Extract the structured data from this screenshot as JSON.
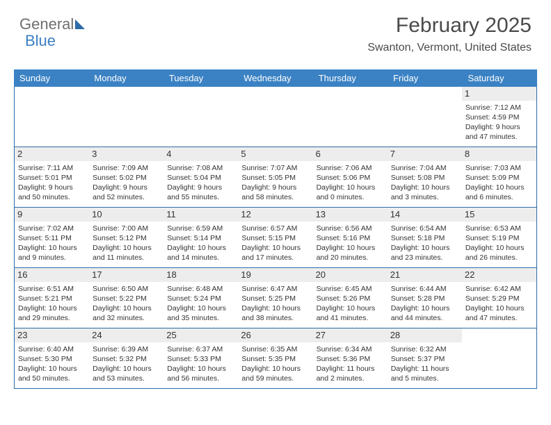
{
  "logo": {
    "text1": "General",
    "text2": "Blue"
  },
  "header": {
    "title": "February 2025",
    "location": "Swanton, Vermont, United States"
  },
  "colors": {
    "header_bg": "#3b82c4",
    "header_text": "#ffffff",
    "border": "#2c6aa8",
    "daynum_bg": "#ededed",
    "body_text": "#333333",
    "logo_gray": "#6f6f6f",
    "logo_blue": "#3b7fc4"
  },
  "day_names": [
    "Sunday",
    "Monday",
    "Tuesday",
    "Wednesday",
    "Thursday",
    "Friday",
    "Saturday"
  ],
  "weeks": [
    [
      {
        "day": "",
        "sunrise": "",
        "sunset": "",
        "daylight1": "",
        "daylight2": ""
      },
      {
        "day": "",
        "sunrise": "",
        "sunset": "",
        "daylight1": "",
        "daylight2": ""
      },
      {
        "day": "",
        "sunrise": "",
        "sunset": "",
        "daylight1": "",
        "daylight2": ""
      },
      {
        "day": "",
        "sunrise": "",
        "sunset": "",
        "daylight1": "",
        "daylight2": ""
      },
      {
        "day": "",
        "sunrise": "",
        "sunset": "",
        "daylight1": "",
        "daylight2": ""
      },
      {
        "day": "",
        "sunrise": "",
        "sunset": "",
        "daylight1": "",
        "daylight2": ""
      },
      {
        "day": "1",
        "sunrise": "Sunrise: 7:12 AM",
        "sunset": "Sunset: 4:59 PM",
        "daylight1": "Daylight: 9 hours",
        "daylight2": "and 47 minutes."
      }
    ],
    [
      {
        "day": "2",
        "sunrise": "Sunrise: 7:11 AM",
        "sunset": "Sunset: 5:01 PM",
        "daylight1": "Daylight: 9 hours",
        "daylight2": "and 50 minutes."
      },
      {
        "day": "3",
        "sunrise": "Sunrise: 7:09 AM",
        "sunset": "Sunset: 5:02 PM",
        "daylight1": "Daylight: 9 hours",
        "daylight2": "and 52 minutes."
      },
      {
        "day": "4",
        "sunrise": "Sunrise: 7:08 AM",
        "sunset": "Sunset: 5:04 PM",
        "daylight1": "Daylight: 9 hours",
        "daylight2": "and 55 minutes."
      },
      {
        "day": "5",
        "sunrise": "Sunrise: 7:07 AM",
        "sunset": "Sunset: 5:05 PM",
        "daylight1": "Daylight: 9 hours",
        "daylight2": "and 58 minutes."
      },
      {
        "day": "6",
        "sunrise": "Sunrise: 7:06 AM",
        "sunset": "Sunset: 5:06 PM",
        "daylight1": "Daylight: 10 hours",
        "daylight2": "and 0 minutes."
      },
      {
        "day": "7",
        "sunrise": "Sunrise: 7:04 AM",
        "sunset": "Sunset: 5:08 PM",
        "daylight1": "Daylight: 10 hours",
        "daylight2": "and 3 minutes."
      },
      {
        "day": "8",
        "sunrise": "Sunrise: 7:03 AM",
        "sunset": "Sunset: 5:09 PM",
        "daylight1": "Daylight: 10 hours",
        "daylight2": "and 6 minutes."
      }
    ],
    [
      {
        "day": "9",
        "sunrise": "Sunrise: 7:02 AM",
        "sunset": "Sunset: 5:11 PM",
        "daylight1": "Daylight: 10 hours",
        "daylight2": "and 9 minutes."
      },
      {
        "day": "10",
        "sunrise": "Sunrise: 7:00 AM",
        "sunset": "Sunset: 5:12 PM",
        "daylight1": "Daylight: 10 hours",
        "daylight2": "and 11 minutes."
      },
      {
        "day": "11",
        "sunrise": "Sunrise: 6:59 AM",
        "sunset": "Sunset: 5:14 PM",
        "daylight1": "Daylight: 10 hours",
        "daylight2": "and 14 minutes."
      },
      {
        "day": "12",
        "sunrise": "Sunrise: 6:57 AM",
        "sunset": "Sunset: 5:15 PM",
        "daylight1": "Daylight: 10 hours",
        "daylight2": "and 17 minutes."
      },
      {
        "day": "13",
        "sunrise": "Sunrise: 6:56 AM",
        "sunset": "Sunset: 5:16 PM",
        "daylight1": "Daylight: 10 hours",
        "daylight2": "and 20 minutes."
      },
      {
        "day": "14",
        "sunrise": "Sunrise: 6:54 AM",
        "sunset": "Sunset: 5:18 PM",
        "daylight1": "Daylight: 10 hours",
        "daylight2": "and 23 minutes."
      },
      {
        "day": "15",
        "sunrise": "Sunrise: 6:53 AM",
        "sunset": "Sunset: 5:19 PM",
        "daylight1": "Daylight: 10 hours",
        "daylight2": "and 26 minutes."
      }
    ],
    [
      {
        "day": "16",
        "sunrise": "Sunrise: 6:51 AM",
        "sunset": "Sunset: 5:21 PM",
        "daylight1": "Daylight: 10 hours",
        "daylight2": "and 29 minutes."
      },
      {
        "day": "17",
        "sunrise": "Sunrise: 6:50 AM",
        "sunset": "Sunset: 5:22 PM",
        "daylight1": "Daylight: 10 hours",
        "daylight2": "and 32 minutes."
      },
      {
        "day": "18",
        "sunrise": "Sunrise: 6:48 AM",
        "sunset": "Sunset: 5:24 PM",
        "daylight1": "Daylight: 10 hours",
        "daylight2": "and 35 minutes."
      },
      {
        "day": "19",
        "sunrise": "Sunrise: 6:47 AM",
        "sunset": "Sunset: 5:25 PM",
        "daylight1": "Daylight: 10 hours",
        "daylight2": "and 38 minutes."
      },
      {
        "day": "20",
        "sunrise": "Sunrise: 6:45 AM",
        "sunset": "Sunset: 5:26 PM",
        "daylight1": "Daylight: 10 hours",
        "daylight2": "and 41 minutes."
      },
      {
        "day": "21",
        "sunrise": "Sunrise: 6:44 AM",
        "sunset": "Sunset: 5:28 PM",
        "daylight1": "Daylight: 10 hours",
        "daylight2": "and 44 minutes."
      },
      {
        "day": "22",
        "sunrise": "Sunrise: 6:42 AM",
        "sunset": "Sunset: 5:29 PM",
        "daylight1": "Daylight: 10 hours",
        "daylight2": "and 47 minutes."
      }
    ],
    [
      {
        "day": "23",
        "sunrise": "Sunrise: 6:40 AM",
        "sunset": "Sunset: 5:30 PM",
        "daylight1": "Daylight: 10 hours",
        "daylight2": "and 50 minutes."
      },
      {
        "day": "24",
        "sunrise": "Sunrise: 6:39 AM",
        "sunset": "Sunset: 5:32 PM",
        "daylight1": "Daylight: 10 hours",
        "daylight2": "and 53 minutes."
      },
      {
        "day": "25",
        "sunrise": "Sunrise: 6:37 AM",
        "sunset": "Sunset: 5:33 PM",
        "daylight1": "Daylight: 10 hours",
        "daylight2": "and 56 minutes."
      },
      {
        "day": "26",
        "sunrise": "Sunrise: 6:35 AM",
        "sunset": "Sunset: 5:35 PM",
        "daylight1": "Daylight: 10 hours",
        "daylight2": "and 59 minutes."
      },
      {
        "day": "27",
        "sunrise": "Sunrise: 6:34 AM",
        "sunset": "Sunset: 5:36 PM",
        "daylight1": "Daylight: 11 hours",
        "daylight2": "and 2 minutes."
      },
      {
        "day": "28",
        "sunrise": "Sunrise: 6:32 AM",
        "sunset": "Sunset: 5:37 PM",
        "daylight1": "Daylight: 11 hours",
        "daylight2": "and 5 minutes."
      },
      {
        "day": "",
        "sunrise": "",
        "sunset": "",
        "daylight1": "",
        "daylight2": ""
      }
    ]
  ]
}
